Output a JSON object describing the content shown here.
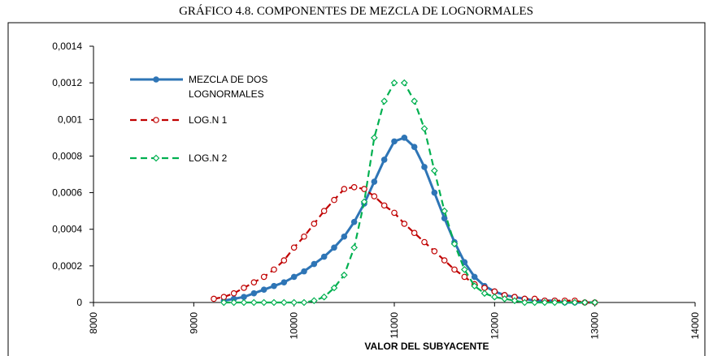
{
  "chart_data": {
    "type": "line",
    "title": "GRÁFICO 4.8. COMPONENTES DE MEZCLA DE LOGNORMALES",
    "x_label": "VALOR DEL SUBYACENTE",
    "xlim": [
      8000,
      14000
    ],
    "xticks": [
      8000,
      9000,
      10000,
      11000,
      12000,
      13000,
      14000
    ],
    "ylim": [
      0,
      0.0014
    ],
    "yticks": [
      0,
      {
        "value": 0.0002,
        "label": "0,0002"
      },
      {
        "value": 0.0004,
        "label": "0,0004"
      },
      {
        "value": 0.0006,
        "label": "0,0006"
      },
      {
        "value": 0.0008,
        "label": "0,0008"
      },
      {
        "value": 0.001,
        "label": "0,001"
      },
      {
        "value": 0.0012,
        "label": "0,0012"
      },
      {
        "value": 0.0014,
        "label": "0,0014"
      }
    ],
    "grid": false,
    "x": [
      9200,
      9300,
      9400,
      9500,
      9600,
      9700,
      9800,
      9900,
      10000,
      10100,
      10200,
      10300,
      10400,
      10500,
      10600,
      10700,
      10800,
      10900,
      11000,
      11100,
      11200,
      11300,
      11400,
      11500,
      11600,
      11700,
      11800,
      11900,
      12000,
      12100,
      12200,
      12300,
      12400,
      12500,
      12600,
      12700,
      12800,
      12900,
      13000
    ],
    "series": [
      {
        "name": "MEZCLA DE DOS LOGNORMALES",
        "color": "#2e75b6",
        "marker": "filled-circle",
        "dashed": false,
        "values": [
          null,
          1e-05,
          2e-05,
          3e-05,
          5e-05,
          7e-05,
          9e-05,
          0.00011,
          0.00014,
          0.00017,
          0.00021,
          0.00025,
          0.0003,
          0.00036,
          0.00044,
          0.00054,
          0.00066,
          0.00078,
          0.00088,
          0.0009,
          0.00085,
          0.00074,
          0.0006,
          0.00046,
          0.00033,
          0.00022,
          0.00014,
          9e-05,
          6e-05,
          4e-05,
          3e-05,
          2e-05,
          1e-05,
          1e-05,
          1e-05,
          0,
          0,
          0,
          0
        ]
      },
      {
        "name": "LOG.N 1",
        "color": "#c00000",
        "marker": "open-circle",
        "dashed": true,
        "values": [
          2e-05,
          3e-05,
          5e-05,
          8e-05,
          0.00011,
          0.00014,
          0.00018,
          0.00023,
          0.0003,
          0.00036,
          0.00043,
          0.0005,
          0.00056,
          0.00062,
          0.00063,
          0.00062,
          0.00058,
          0.00053,
          0.00049,
          0.00043,
          0.00038,
          0.00033,
          0.00028,
          0.00023,
          0.00018,
          0.00014,
          0.0001,
          8e-05,
          6e-05,
          4e-05,
          3e-05,
          2e-05,
          2e-05,
          1e-05,
          1e-05,
          1e-05,
          1e-05,
          0,
          0
        ]
      },
      {
        "name": "LOG.N 2",
        "color": "#00b050",
        "marker": "open-diamond",
        "dashed": true,
        "values": [
          null,
          0,
          0,
          0,
          0,
          0,
          0,
          0,
          0,
          0,
          1e-05,
          3e-05,
          8e-05,
          0.00015,
          0.0003,
          0.00055,
          0.0009,
          0.0011,
          0.0012,
          0.0012,
          0.0011,
          0.00095,
          0.00072,
          0.0005,
          0.00032,
          0.00018,
          9e-05,
          5e-05,
          3e-05,
          2e-05,
          1e-05,
          0,
          0,
          0,
          0,
          0,
          0,
          0,
          0
        ]
      }
    ]
  }
}
